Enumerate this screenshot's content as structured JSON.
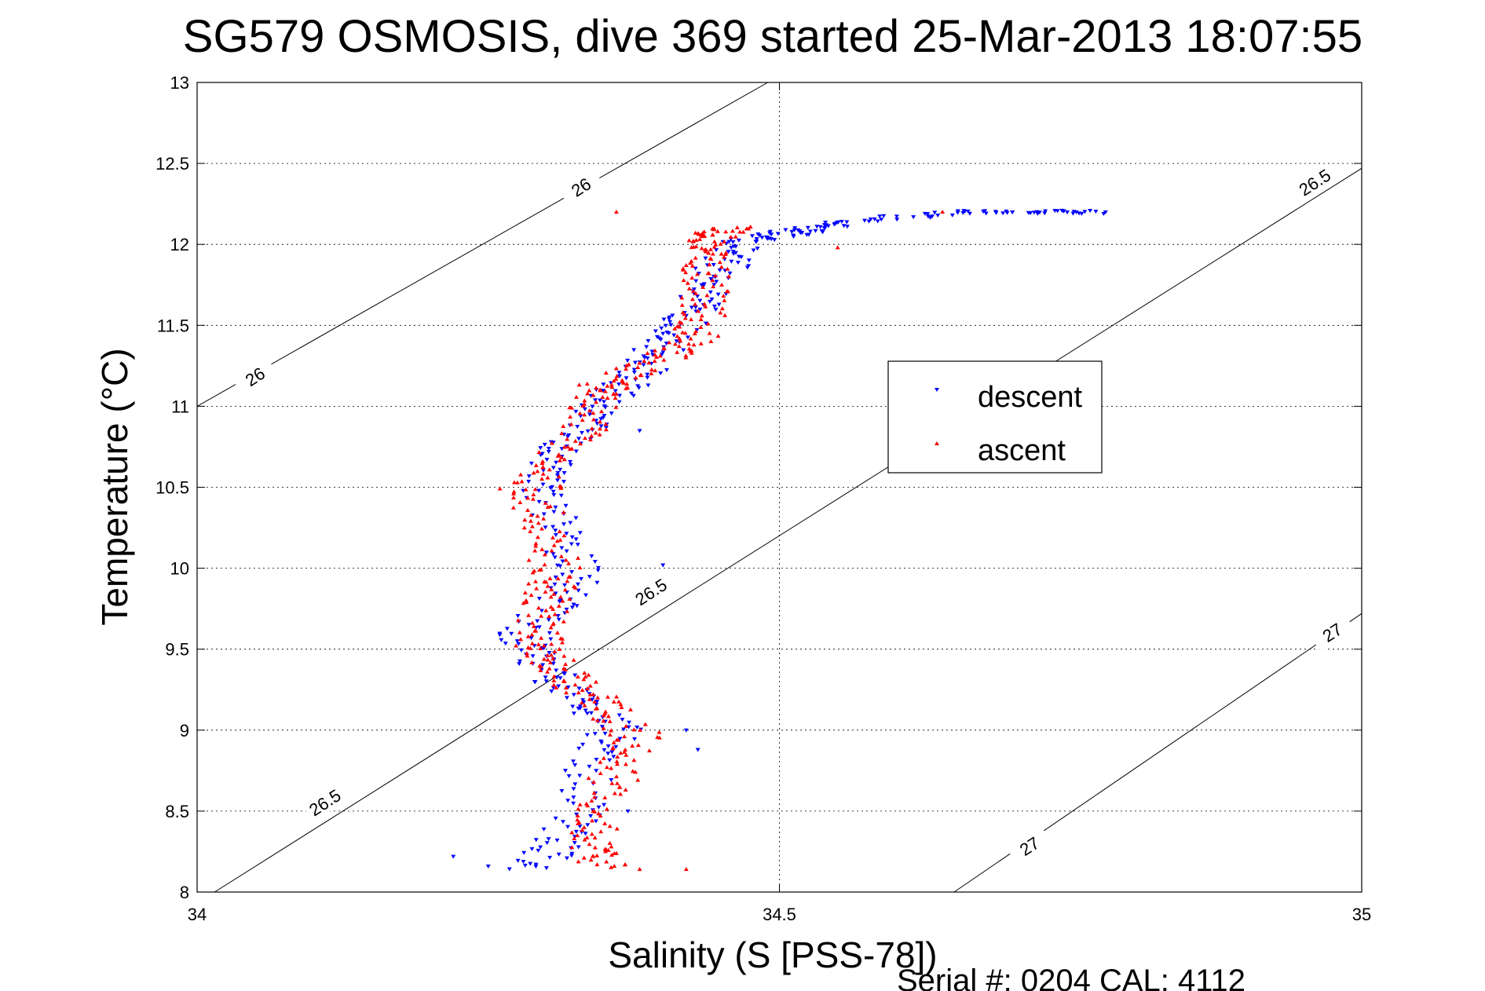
{
  "chart_data": {
    "type": "scatter",
    "title": "SG579 OSMOSIS, dive 369 started 25-Mar-2013 18:07:55",
    "xlabel": "Salinity (S [PSS-78])",
    "ylabel": "Temperature (°C)",
    "xlim": [
      34,
      35
    ],
    "ylim": [
      8,
      13
    ],
    "xticks": [
      34,
      34.5,
      35
    ],
    "xtick_labels": [
      "34",
      "34.5",
      "35"
    ],
    "yticks": [
      8,
      8.5,
      9,
      9.5,
      10,
      10.5,
      11,
      11.5,
      12,
      12.5,
      13
    ],
    "ytick_labels": [
      "8",
      "8.5",
      "9",
      "9.5",
      "10",
      "10.5",
      "11",
      "11.5",
      "12",
      "12.5",
      "13"
    ],
    "grid": true,
    "legend_position": "center-right",
    "isopycnals": [
      {
        "label": "26",
        "points": [
          [
            34.0,
            11.0
          ],
          [
            34.49,
            13.0
          ]
        ]
      },
      {
        "label": "26.5",
        "points": [
          [
            34.015,
            8.0
          ],
          [
            35.0,
            12.47
          ]
        ]
      },
      {
        "label": "27",
        "points": [
          [
            34.65,
            8.0
          ],
          [
            35.0,
            9.72
          ]
        ]
      }
    ],
    "contour_labels": [
      {
        "text": "26",
        "at": [
          34.33,
          12.35
        ]
      },
      {
        "text": "26",
        "at": [
          34.05,
          11.18
        ]
      },
      {
        "text": "26.5",
        "at": [
          34.11,
          8.55
        ]
      },
      {
        "text": "26.5",
        "at": [
          34.39,
          9.85
        ]
      },
      {
        "text": "26.5",
        "at": [
          34.96,
          12.38
        ]
      },
      {
        "text": "27",
        "at": [
          34.715,
          8.28
        ]
      },
      {
        "text": "27",
        "at": [
          34.975,
          9.6
        ]
      }
    ],
    "series": [
      {
        "name": "descent",
        "marker": "triangle-down",
        "color": "#0000ff",
        "profile": [
          [
            8.15,
            34.29
          ],
          [
            8.3,
            34.31
          ],
          [
            8.5,
            34.33
          ],
          [
            8.8,
            34.34
          ],
          [
            9.0,
            34.36
          ],
          [
            9.15,
            34.33
          ],
          [
            9.3,
            34.31
          ],
          [
            9.45,
            34.29
          ],
          [
            9.6,
            34.28
          ],
          [
            9.8,
            34.31
          ],
          [
            10.0,
            34.33
          ],
          [
            10.25,
            34.31
          ],
          [
            10.5,
            34.3
          ],
          [
            10.7,
            34.31
          ],
          [
            10.85,
            34.33
          ],
          [
            11.0,
            34.345
          ],
          [
            11.15,
            34.37
          ],
          [
            11.3,
            34.39
          ],
          [
            11.45,
            34.41
          ],
          [
            11.6,
            34.425
          ],
          [
            11.75,
            34.44
          ],
          [
            11.9,
            34.455
          ],
          [
            12.02,
            34.47
          ],
          [
            12.06,
            34.5
          ],
          [
            12.1,
            34.53
          ],
          [
            12.15,
            34.57
          ],
          [
            12.2,
            34.65
          ],
          [
            12.2,
            34.72
          ],
          [
            12.2,
            34.78
          ]
        ],
        "sample_points": [
          [
            34.25,
            8.16
          ],
          [
            34.3,
            8.15
          ],
          [
            34.22,
            8.22
          ],
          [
            34.37,
            8.5
          ],
          [
            34.42,
            9.0
          ],
          [
            34.43,
            8.88
          ],
          [
            34.4,
            10.02
          ],
          [
            34.38,
            10.85
          ],
          [
            34.4,
            11.45
          ],
          [
            34.7,
            12.2
          ],
          [
            34.78,
            12.2
          ],
          [
            34.28,
            10.48
          ]
        ]
      },
      {
        "name": "ascent",
        "marker": "triangle-up",
        "color": "#ff0000",
        "profile": [
          [
            8.15,
            34.35
          ],
          [
            8.3,
            34.34
          ],
          [
            8.5,
            34.345
          ],
          [
            8.75,
            34.36
          ],
          [
            8.95,
            34.38
          ],
          [
            9.15,
            34.35
          ],
          [
            9.3,
            34.32
          ],
          [
            9.45,
            34.3
          ],
          [
            9.6,
            34.29
          ],
          [
            9.8,
            34.3
          ],
          [
            9.95,
            34.31
          ],
          [
            10.2,
            34.3
          ],
          [
            10.45,
            34.29
          ],
          [
            10.65,
            34.3
          ],
          [
            10.85,
            34.33
          ],
          [
            11.05,
            34.345
          ],
          [
            11.15,
            34.35
          ],
          [
            11.3,
            34.4
          ],
          [
            11.42,
            34.43
          ],
          [
            11.6,
            34.435
          ],
          [
            11.8,
            34.44
          ],
          [
            11.95,
            34.435
          ],
          [
            12.05,
            34.44
          ],
          [
            12.1,
            34.46
          ]
        ],
        "sample_points": [
          [
            34.38,
            8.14
          ],
          [
            34.42,
            8.14
          ],
          [
            34.36,
            12.2
          ],
          [
            34.55,
            11.98
          ],
          [
            34.64,
            12.2
          ],
          [
            34.26,
            10.49
          ],
          [
            34.44,
            11.45
          ]
        ]
      }
    ]
  },
  "legend": {
    "descent_label": "descent",
    "ascent_label": "ascent"
  },
  "footer": {
    "serial_text": "Serial #: 0204  CAL: 4112"
  }
}
